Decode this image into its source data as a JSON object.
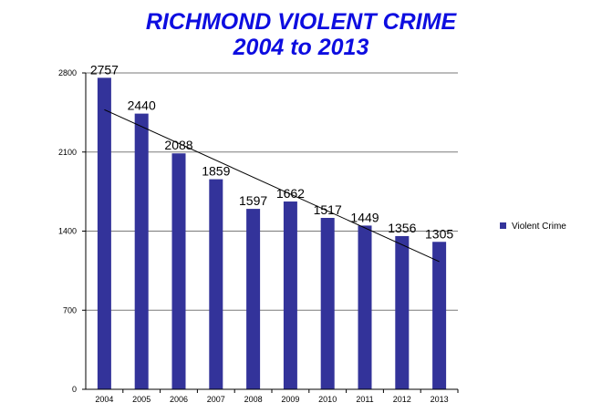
{
  "chart_data": {
    "type": "bar",
    "title_line1": "RICHMOND VIOLENT CRIME",
    "title_line2": "2004 to 2013",
    "categories": [
      "2004",
      "2005",
      "2006",
      "2007",
      "2008",
      "2009",
      "2010",
      "2011",
      "2012",
      "2013"
    ],
    "series": [
      {
        "name": "Violent Crime",
        "values": [
          2757,
          2440,
          2088,
          1859,
          1597,
          1662,
          1517,
          1449,
          1356,
          1305
        ],
        "color": "#33339a"
      }
    ],
    "trendline": {
      "start": 2475,
      "end": 1130,
      "color": "#000000"
    },
    "ylim": [
      0,
      2800
    ],
    "yticks": [
      0,
      700,
      1400,
      2100,
      2800
    ],
    "grid": true,
    "legend": "right"
  }
}
